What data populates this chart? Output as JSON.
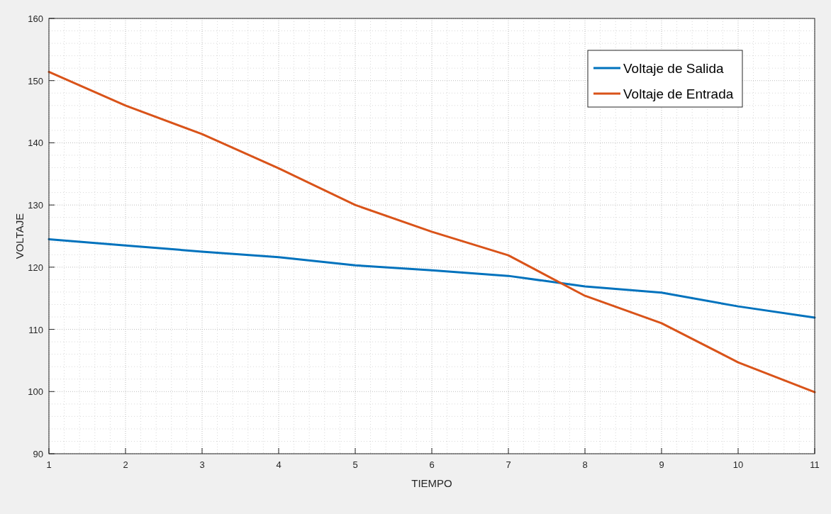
{
  "chart_data": {
    "type": "line",
    "xlabel": "TIEMPO",
    "ylabel": "VOLTAJE",
    "x": [
      1,
      2,
      3,
      4,
      5,
      6,
      7,
      8,
      9,
      10,
      11
    ],
    "series": [
      {
        "name": "Voltaje de Salida",
        "color": "#0072bd",
        "values": [
          124.5,
          123.5,
          122.5,
          121.6,
          120.3,
          119.5,
          118.6,
          116.9,
          115.9,
          113.7,
          111.9
        ]
      },
      {
        "name": "Voltaje de Entrada",
        "color": "#d95319",
        "values": [
          151.4,
          146,
          141.4,
          135.9,
          130,
          125.7,
          121.9,
          115.4,
          111,
          104.7,
          99.9
        ]
      }
    ],
    "xlim": [
      1,
      11
    ],
    "xticks": [
      1,
      2,
      3,
      4,
      5,
      6,
      7,
      8,
      9,
      10,
      11
    ],
    "ylim": [
      90,
      160
    ],
    "yticks": [
      90,
      100,
      110,
      120,
      130,
      140,
      150,
      160
    ],
    "grid": true,
    "legend": "top right",
    "line_style": "solid",
    "marker": "none"
  }
}
